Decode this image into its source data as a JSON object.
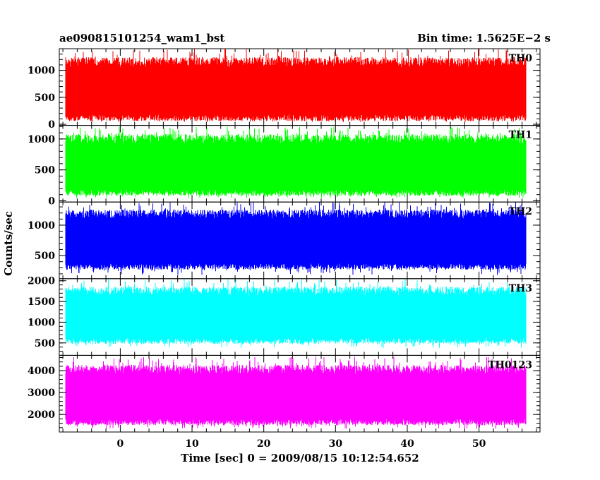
{
  "chart_data": {
    "type": "line",
    "title_left": "ae090815101254_wam1_bst",
    "title_right": "Bin time: 1.5625E−2 s",
    "xlabel": "Time [sec] 0 = 2009/08/15 10:12:54.652",
    "ylabel": "Counts/sec",
    "xlim": [
      -8.5,
      58.5
    ],
    "x_ticks": [
      0,
      10,
      20,
      30,
      40,
      50
    ],
    "x_tick_labels": [
      "0",
      "10",
      "20",
      "30",
      "40",
      "50"
    ],
    "data_x_range": [
      -7.6,
      56.5
    ],
    "grid": false,
    "panels": [
      {
        "name": "TH0",
        "color": "#ff0000",
        "ylim": [
          -20,
          1400
        ],
        "y_ticks": [
          0,
          500,
          1000
        ],
        "y_tick_labels": [
          "0",
          "500",
          "1000"
        ],
        "typical_range": [
          120,
          1150
        ],
        "extreme_range": [
          40,
          1400
        ]
      },
      {
        "name": "TH1",
        "color": "#00ff00",
        "ylim": [
          -20,
          1220
        ],
        "y_ticks": [
          0,
          500,
          1000
        ],
        "y_tick_labels": [
          "0",
          "500",
          "1000"
        ],
        "typical_range": [
          130,
          1000
        ],
        "extreme_range": [
          40,
          1200
        ]
      },
      {
        "name": "TH2",
        "color": "#0000ff",
        "ylim": [
          120,
          1380
        ],
        "y_ticks": [
          500,
          1000
        ],
        "y_tick_labels": [
          "500",
          "1000"
        ],
        "typical_range": [
          320,
          1180
        ],
        "extreme_range": [
          180,
          1380
        ]
      },
      {
        "name": "TH3",
        "color": "#00ffff",
        "ylim": [
          200,
          2050
        ],
        "y_ticks": [
          500,
          1000,
          1500,
          2000
        ],
        "y_tick_labels": [
          "500",
          "1000",
          "1500",
          "2000"
        ],
        "typical_range": [
          550,
          1750
        ],
        "extreme_range": [
          380,
          2050
        ]
      },
      {
        "name": "TH0123",
        "color": "#ff00ff",
        "ylim": [
          1200,
          4700
        ],
        "y_ticks": [
          2000,
          3000,
          4000
        ],
        "y_tick_labels": [
          "2000",
          "3000",
          "4000"
        ],
        "typical_range": [
          1650,
          4050
        ],
        "extreme_range": [
          1350,
          4650
        ]
      }
    ]
  }
}
